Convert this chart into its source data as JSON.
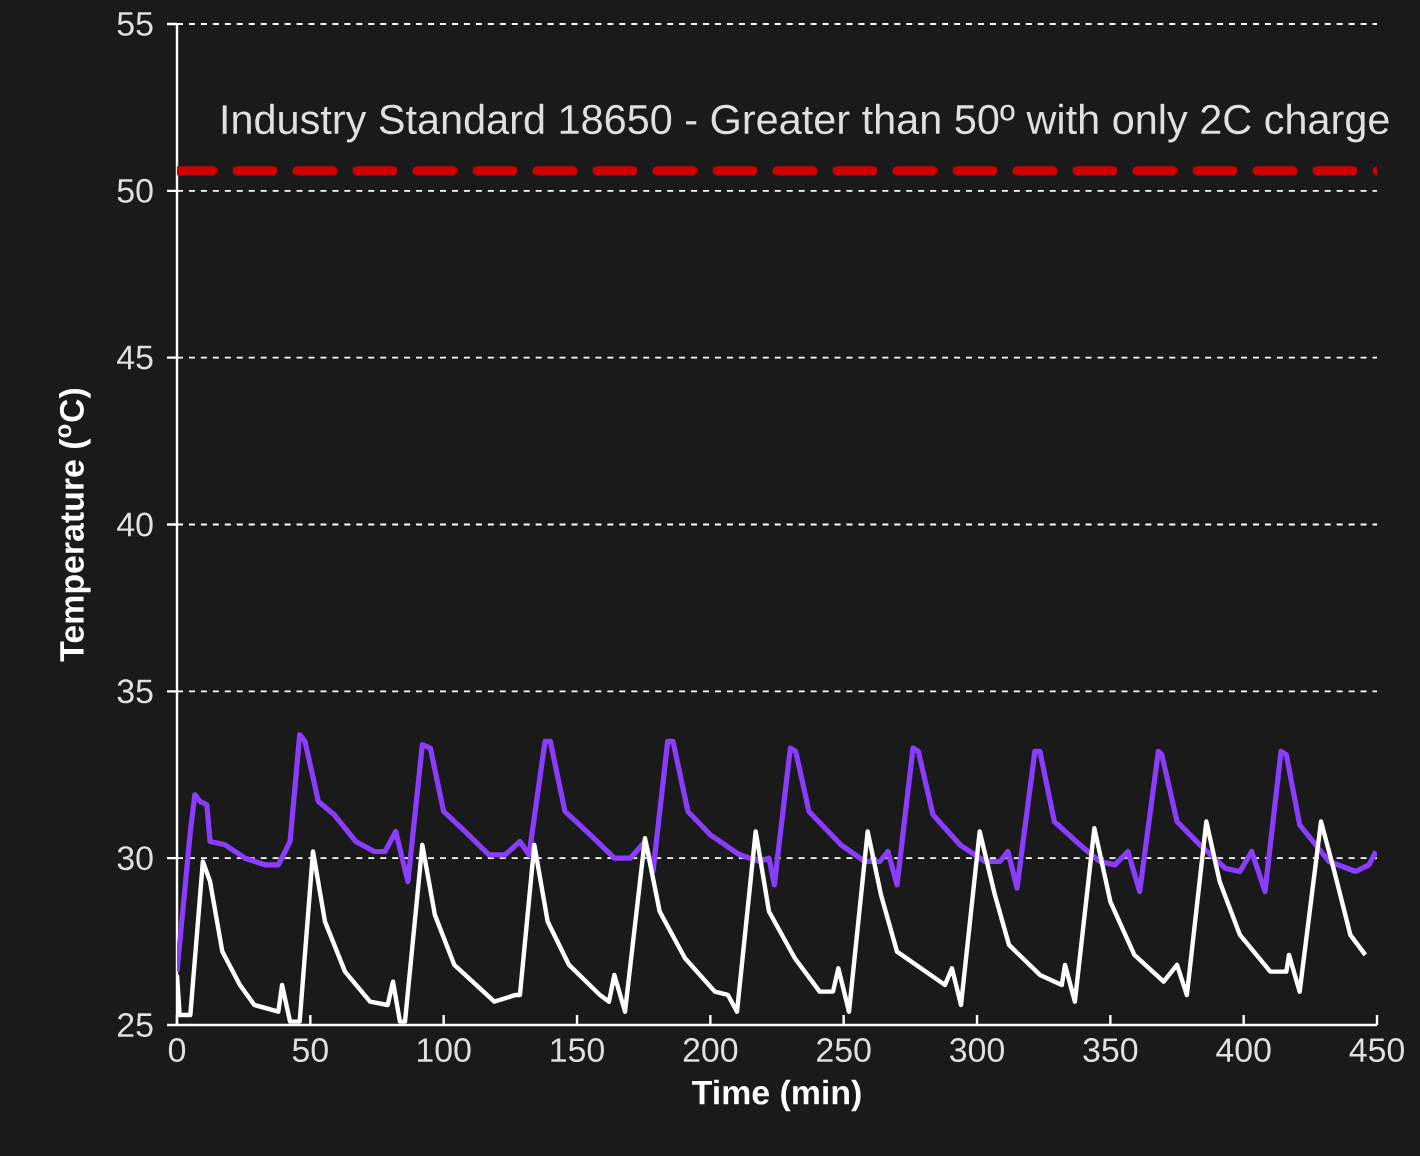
{
  "chart_data": {
    "type": "line",
    "xlabel": "Time (min)",
    "ylabel": "Temperature ($^{o}$C)",
    "xlim": [
      0,
      450
    ],
    "ylim": [
      25,
      55
    ],
    "xticks": [
      0,
      50,
      100,
      150,
      200,
      250,
      300,
      350,
      400,
      450
    ],
    "yticks": [
      25,
      30,
      35,
      40,
      45,
      50,
      55
    ],
    "grid": "y",
    "marker": "none",
    "line_style": "solid",
    "series": [
      {
        "color": "#8b3dff",
        "x": [
          0,
          5,
          6.7,
          8.6,
          11.2,
          12.4,
          18,
          25.5,
          33,
          38,
          42.4,
          46,
          48,
          53,
          59,
          67,
          74,
          78,
          82,
          86.6,
          92,
          95,
          100,
          108,
          117,
          123,
          128.6,
          132,
          138,
          140,
          145.5,
          155,
          164,
          170,
          175.5,
          178.5,
          184,
          186,
          191.6,
          200,
          211,
          218.6,
          222,
          224,
          230,
          232,
          237,
          249,
          258,
          263.6,
          266.6,
          270,
          276,
          278,
          283.5,
          293.6,
          303,
          308.6,
          311.6,
          315,
          321.7,
          323.6,
          329,
          338.6,
          346,
          351.7,
          356.6,
          361,
          368,
          369.3,
          375,
          383.6,
          393,
          398.6,
          403,
          408,
          414,
          416,
          421,
          432,
          442,
          447,
          449.6
        ],
        "values": [
          26.6,
          30.8,
          31.9,
          31.7,
          31.6,
          30.5,
          30.4,
          30.0,
          29.8,
          29.8,
          30.5,
          33.7,
          33.5,
          31.7,
          31.3,
          30.5,
          30.2,
          30.2,
          30.8,
          29.3,
          33.4,
          33.3,
          31.4,
          30.8,
          30.1,
          30.1,
          30.5,
          30.1,
          33.5,
          33.5,
          31.4,
          30.7,
          30.0,
          30.0,
          30.5,
          29.6,
          33.5,
          33.5,
          31.4,
          30.7,
          30.1,
          29.9,
          30.0,
          29.2,
          33.3,
          33.2,
          31.4,
          30.4,
          29.9,
          29.9,
          30.2,
          29.2,
          33.3,
          33.2,
          31.3,
          30.4,
          29.9,
          29.9,
          30.2,
          29.1,
          33.2,
          33.2,
          31.1,
          30.4,
          29.9,
          29.8,
          30.2,
          29.0,
          33.2,
          33.1,
          31.1,
          30.4,
          29.7,
          29.6,
          30.2,
          29.0,
          33.2,
          33.1,
          31.0,
          29.9,
          29.6,
          29.8,
          30.2
        ]
      },
      {
        "color": "#ffffff",
        "x": [
          0,
          1,
          5,
          9.7,
          12.4,
          17,
          23.6,
          29,
          38,
          39.4,
          42.4,
          46,
          51,
          55.5,
          63,
          72.4,
          79,
          81,
          83.6,
          85.5,
          92,
          96.7,
          104,
          113.6,
          119,
          127,
          128.6,
          134,
          139,
          147,
          158.6,
          162,
          164,
          168,
          175.5,
          181,
          190.5,
          201.7,
          206.6,
          210,
          217,
          222,
          231.7,
          241,
          246,
          248,
          252,
          259,
          264,
          270,
          288,
          290.6,
          294,
          301,
          306.7,
          312,
          323.6,
          331.8,
          333,
          336.7,
          344,
          350,
          359,
          370,
          375,
          378.7,
          386,
          391,
          398.6,
          410,
          416,
          417,
          421,
          429,
          434,
          440,
          445.6
        ],
        "values": [
          26.5,
          25.3,
          25.3,
          29.9,
          29.3,
          27.2,
          26.2,
          25.6,
          25.4,
          26.2,
          25.1,
          25.1,
          30.2,
          28.1,
          26.6,
          25.7,
          25.6,
          26.3,
          25.1,
          25.1,
          30.4,
          28.3,
          26.8,
          26.1,
          25.7,
          25.9,
          25.9,
          30.4,
          28.1,
          26.8,
          25.9,
          25.7,
          26.5,
          25.4,
          30.6,
          28.4,
          27.0,
          26.0,
          25.9,
          25.4,
          30.8,
          28.4,
          27.0,
          26.0,
          26.0,
          26.7,
          25.4,
          30.8,
          28.9,
          27.2,
          26.2,
          26.7,
          25.6,
          30.8,
          28.9,
          27.4,
          26.5,
          26.2,
          26.8,
          25.7,
          30.9,
          28.7,
          27.1,
          26.3,
          26.8,
          25.9,
          31.1,
          29.3,
          27.7,
          26.6,
          26.6,
          27.1,
          26.0,
          31.1,
          29.6,
          27.7,
          27.1
        ]
      }
    ],
    "ref_lines": [
      {
        "axis": "y",
        "value": 50.6,
        "label": "Industry Standard 18650 - Greater than 50º with only 2C charge",
        "color": "#cc0000",
        "line_style": "dashed"
      }
    ]
  }
}
